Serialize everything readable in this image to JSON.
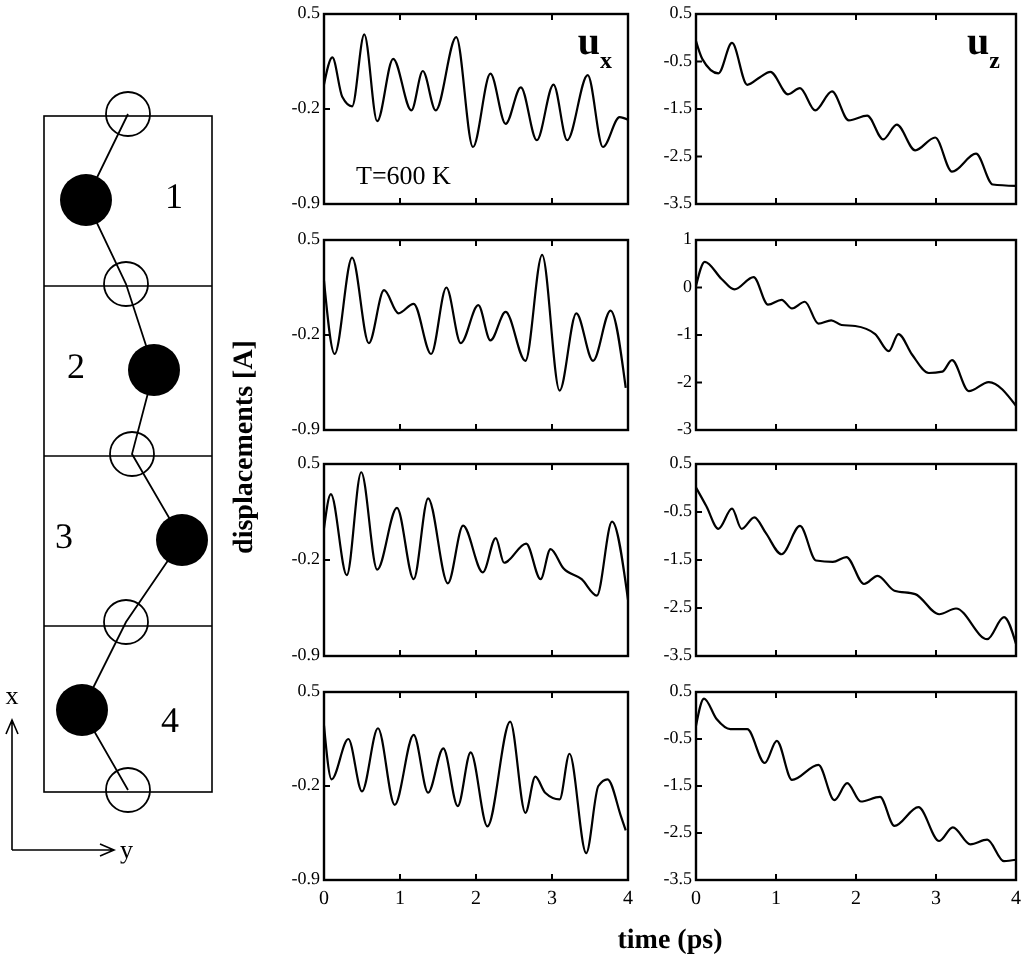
{
  "chart_data": [
    {
      "type": "other",
      "annotations": [
        "1",
        "2",
        "3",
        "4",
        "x",
        "y"
      ]
    },
    {
      "type": "line",
      "title": "u$_{x}$",
      "ylabel": "displacements [A]",
      "annotations": [
        "T=600 K"
      ],
      "xlim": [
        0,
        4
      ],
      "xticks": [
        0,
        1,
        2,
        3,
        4
      ],
      "ylim": [
        -0.9,
        0.5
      ],
      "yticks": [
        -0.9,
        -0.2,
        0.5
      ],
      "tick_labels": "y",
      "color": "#000000",
      "x": [
        0,
        0.11,
        0.24,
        0.37,
        0.53,
        0.7,
        0.91,
        1.15,
        1.3,
        1.47,
        1.74,
        1.96,
        2.19,
        2.39,
        2.59,
        2.8,
        3.02,
        3.2,
        3.47,
        3.67,
        3.89,
        4.0
      ],
      "values": [
        -0.02,
        0.18,
        -0.11,
        -0.18,
        0.35,
        -0.29,
        0.17,
        -0.21,
        0.08,
        -0.21,
        0.33,
        -0.48,
        0.06,
        -0.31,
        -0.04,
        -0.43,
        -0.02,
        -0.43,
        0.05,
        -0.48,
        -0.26,
        -0.28
      ]
    },
    {
      "type": "line",
      "title": "u$_{z}$",
      "xlim": [
        0,
        4
      ],
      "xticks": [
        0,
        1,
        2,
        3,
        4
      ],
      "ylim": [
        -3.5,
        0.5
      ],
      "yticks": [
        -3.5,
        -2.5,
        -1.5,
        -0.5,
        0.5
      ],
      "tick_labels": "y",
      "color": "#000000",
      "x": [
        0,
        0.08,
        0.28,
        0.45,
        0.64,
        0.8,
        0.93,
        1.15,
        1.3,
        1.49,
        1.7,
        1.91,
        2.14,
        2.34,
        2.51,
        2.74,
        2.99,
        3.2,
        3.5,
        3.71,
        4.0
      ],
      "values": [
        -0.07,
        -0.45,
        -0.75,
        -0.11,
        -0.99,
        -0.83,
        -0.72,
        -1.19,
        -1.06,
        -1.53,
        -1.13,
        -1.74,
        -1.64,
        -2.14,
        -1.83,
        -2.37,
        -2.1,
        -2.82,
        -2.44,
        -3.09,
        -3.12
      ]
    },
    {
      "type": "line",
      "xlim": [
        0,
        4
      ],
      "xticks": [
        0,
        1,
        2,
        3,
        4
      ],
      "ylim": [
        -0.9,
        0.5
      ],
      "yticks": [
        -0.9,
        -0.2,
        0.5
      ],
      "tick_labels": "y",
      "color": "#000000",
      "x": [
        0,
        0.14,
        0.37,
        0.59,
        0.79,
        0.98,
        1.18,
        1.41,
        1.61,
        1.8,
        2.03,
        2.19,
        2.39,
        2.65,
        2.87,
        3.1,
        3.32,
        3.54,
        3.77,
        3.97
      ],
      "values": [
        0.2,
        -0.34,
        0.37,
        -0.26,
        0.13,
        -0.04,
        0.03,
        -0.34,
        0.15,
        -0.26,
        0.02,
        -0.24,
        -0.03,
        -0.39,
        0.39,
        -0.61,
        -0.04,
        -0.39,
        -0.02,
        -0.59
      ]
    },
    {
      "type": "line",
      "xlim": [
        0,
        4
      ],
      "xticks": [
        0,
        1,
        2,
        3,
        4
      ],
      "ylim": [
        -3,
        1
      ],
      "yticks": [
        -3,
        -2,
        -1,
        0,
        1
      ],
      "tick_labels": "y",
      "color": "#000000",
      "x": [
        0,
        0.11,
        0.32,
        0.48,
        0.72,
        0.9,
        1.07,
        1.2,
        1.36,
        1.53,
        1.69,
        1.82,
        1.99,
        2.24,
        2.41,
        2.53,
        2.7,
        2.91,
        3.08,
        3.2,
        3.41,
        3.66,
        4.0
      ],
      "values": [
        0.03,
        0.54,
        0.18,
        -0.04,
        0.22,
        -0.36,
        -0.26,
        -0.44,
        -0.3,
        -0.76,
        -0.69,
        -0.79,
        -0.81,
        -0.98,
        -1.34,
        -0.98,
        -1.41,
        -1.8,
        -1.77,
        -1.53,
        -2.18,
        -1.99,
        -2.49
      ]
    },
    {
      "type": "line",
      "xlim": [
        0,
        4
      ],
      "xticks": [
        0,
        1,
        2,
        3,
        4
      ],
      "ylim": [
        -0.9,
        0.5
      ],
      "yticks": [
        -0.9,
        -0.2,
        0.5
      ],
      "tick_labels": "y",
      "color": "#000000",
      "x": [
        0,
        0.09,
        0.3,
        0.49,
        0.7,
        0.96,
        1.18,
        1.37,
        1.63,
        1.83,
        2.09,
        2.26,
        2.37,
        2.66,
        2.85,
        2.98,
        3.15,
        3.39,
        3.59,
        3.79,
        4.0
      ],
      "values": [
        0.03,
        0.28,
        -0.31,
        0.44,
        -0.27,
        0.18,
        -0.34,
        0.25,
        -0.37,
        0.05,
        -0.29,
        -0.04,
        -0.22,
        -0.08,
        -0.34,
        -0.12,
        -0.26,
        -0.34,
        -0.46,
        0.08,
        -0.49
      ]
    },
    {
      "type": "line",
      "xlim": [
        0,
        4
      ],
      "xticks": [
        0,
        1,
        2,
        3,
        4
      ],
      "ylim": [
        -3.5,
        0.5
      ],
      "yticks": [
        -3.5,
        -2.5,
        -1.5,
        -0.5,
        0.5
      ],
      "tick_labels": "y",
      "color": "#000000",
      "x": [
        0,
        0.13,
        0.28,
        0.45,
        0.57,
        0.73,
        0.87,
        1.07,
        1.3,
        1.5,
        1.71,
        1.88,
        2.1,
        2.27,
        2.48,
        2.74,
        3.04,
        3.25,
        3.64,
        3.85,
        4.0
      ],
      "values": [
        0.01,
        -0.38,
        -0.85,
        -0.43,
        -0.85,
        -0.61,
        -0.93,
        -1.38,
        -0.79,
        -1.51,
        -1.54,
        -1.44,
        -2.0,
        -1.83,
        -2.14,
        -2.21,
        -2.63,
        -2.51,
        -3.15,
        -2.69,
        -3.25
      ]
    },
    {
      "type": "line",
      "xlabel": "time (ps)",
      "xlim": [
        0,
        4
      ],
      "xticks": [
        0,
        1,
        2,
        3,
        4
      ],
      "ylim": [
        -0.9,
        0.5
      ],
      "yticks": [
        -0.9,
        -0.2,
        0.5
      ],
      "color": "#000000",
      "x": [
        0,
        0.1,
        0.32,
        0.5,
        0.71,
        0.93,
        1.18,
        1.37,
        1.57,
        1.76,
        1.93,
        2.15,
        2.45,
        2.65,
        2.78,
        2.91,
        3.1,
        3.23,
        3.45,
        3.61,
        3.73,
        3.91,
        3.97
      ],
      "values": [
        0.25,
        -0.15,
        0.15,
        -0.24,
        0.23,
        -0.34,
        0.18,
        -0.25,
        0.08,
        -0.35,
        0.05,
        -0.5,
        0.28,
        -0.4,
        -0.13,
        -0.25,
        -0.3,
        0.04,
        -0.7,
        -0.2,
        -0.15,
        -0.43,
        -0.53
      ]
    },
    {
      "type": "line",
      "xlim": [
        0,
        4
      ],
      "xticks": [
        0,
        1,
        2,
        3,
        4
      ],
      "ylim": [
        -3.5,
        0.5
      ],
      "yticks": [
        -3.5,
        -2.5,
        -1.5,
        -0.5,
        0.5
      ],
      "color": "#000000",
      "x": [
        0,
        0.1,
        0.26,
        0.43,
        0.64,
        0.86,
        1.01,
        1.2,
        1.53,
        1.73,
        1.89,
        2.06,
        2.3,
        2.48,
        2.78,
        3.04,
        3.21,
        3.43,
        3.64,
        3.85,
        4.0
      ],
      "values": [
        -0.22,
        0.36,
        -0.08,
        -0.29,
        -0.29,
        -1.01,
        -0.54,
        -1.37,
        -1.05,
        -1.8,
        -1.44,
        -1.83,
        -1.73,
        -2.35,
        -1.95,
        -2.67,
        -2.38,
        -2.74,
        -2.64,
        -3.1,
        -3.07
      ]
    }
  ]
}
